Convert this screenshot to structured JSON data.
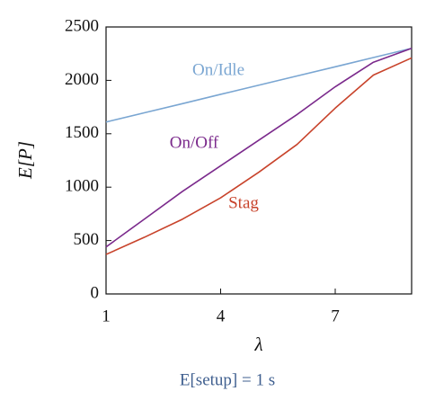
{
  "chart_data": {
    "type": "line",
    "x": [
      1,
      2,
      3,
      4,
      5,
      6,
      7,
      8,
      9
    ],
    "series": [
      {
        "name": "On/Idle",
        "color": "#7aa6d2",
        "values": [
          1610,
          1696,
          1782,
          1869,
          1955,
          2041,
          2127,
          2214,
          2300
        ]
      },
      {
        "name": "On/Off",
        "color": "#7b2a8c",
        "values": [
          440,
          700,
          960,
          1200,
          1440,
          1680,
          1940,
          2170,
          2300
        ]
      },
      {
        "name": "Stag",
        "color": "#c8432b",
        "values": [
          370,
          530,
          700,
          900,
          1140,
          1400,
          1740,
          2050,
          2210
        ]
      }
    ],
    "xlim": [
      1,
      9
    ],
    "ylim": [
      0,
      2500
    ],
    "xticks": [
      1,
      4,
      7
    ],
    "yticks": [
      0,
      500,
      1000,
      1500,
      2000,
      2500
    ],
    "y_label": "E[P]",
    "x_label": "λ",
    "caption": "E[setup] = 1 s"
  }
}
